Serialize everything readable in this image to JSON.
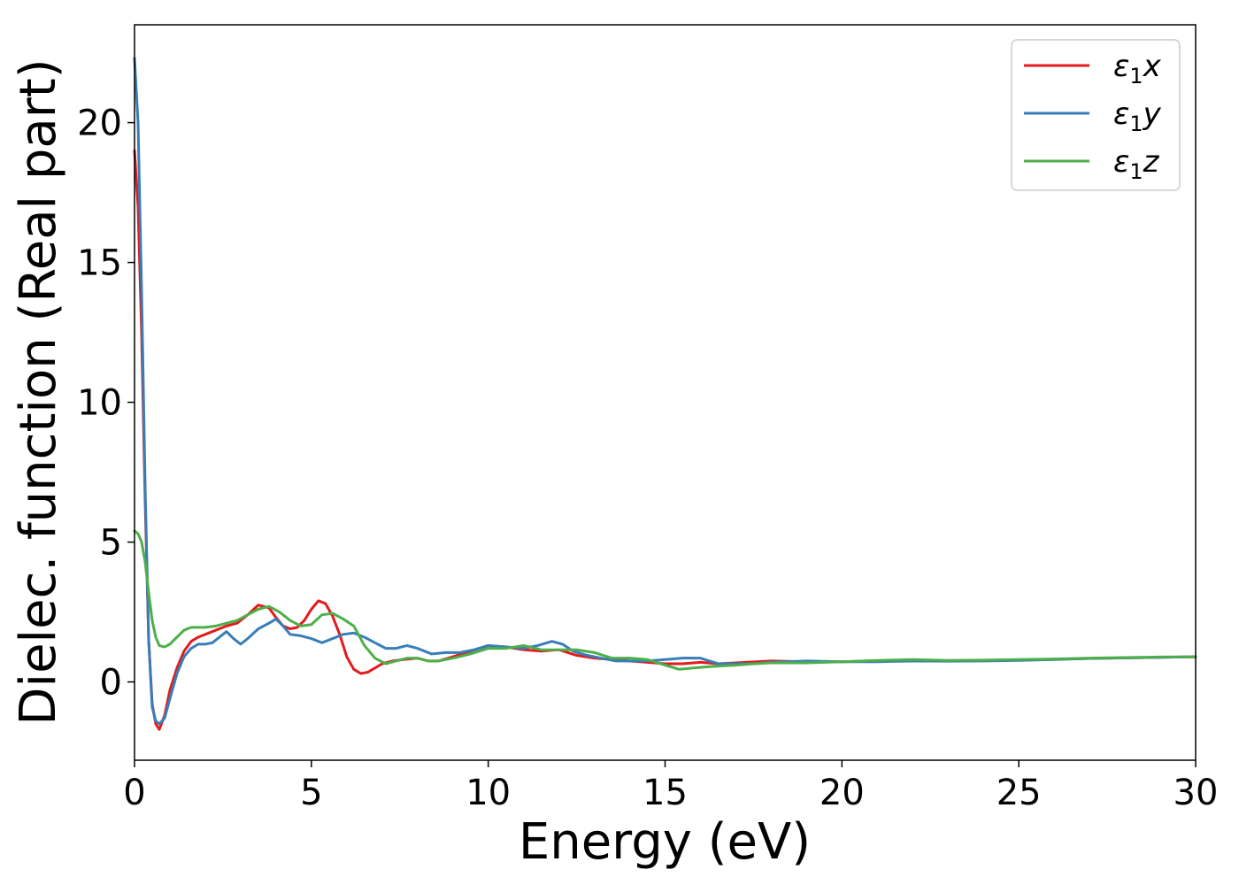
{
  "chart_data": {
    "type": "line",
    "xlabel": "Energy (eV)",
    "ylabel": "Dielec. function (Real part)",
    "xlim": [
      0,
      30
    ],
    "ylim": [
      -2.8,
      23.5
    ],
    "xticks": [
      0,
      5,
      10,
      15,
      20,
      25,
      30
    ],
    "yticks": [
      0,
      5,
      10,
      15,
      20
    ],
    "grid": false,
    "legend_position": "top-right",
    "series": [
      {
        "name": "ε1x",
        "legend_main": "ε",
        "legend_sub": "1",
        "legend_var": "x",
        "color": "#e41a1c",
        "points": [
          [
            0,
            19.0
          ],
          [
            0.1,
            17.0
          ],
          [
            0.2,
            12.5
          ],
          [
            0.3,
            6.5
          ],
          [
            0.4,
            1.5
          ],
          [
            0.5,
            -0.8
          ],
          [
            0.6,
            -1.5
          ],
          [
            0.7,
            -1.7
          ],
          [
            0.85,
            -1.2
          ],
          [
            1.0,
            -0.3
          ],
          [
            1.2,
            0.5
          ],
          [
            1.4,
            1.1
          ],
          [
            1.6,
            1.45
          ],
          [
            1.8,
            1.6
          ],
          [
            2.0,
            1.7
          ],
          [
            2.3,
            1.85
          ],
          [
            2.6,
            2.0
          ],
          [
            2.9,
            2.1
          ],
          [
            3.2,
            2.4
          ],
          [
            3.5,
            2.75
          ],
          [
            3.8,
            2.65
          ],
          [
            4.0,
            2.3
          ],
          [
            4.2,
            2.0
          ],
          [
            4.4,
            1.9
          ],
          [
            4.6,
            1.95
          ],
          [
            4.8,
            2.2
          ],
          [
            5.0,
            2.6
          ],
          [
            5.2,
            2.9
          ],
          [
            5.4,
            2.8
          ],
          [
            5.6,
            2.35
          ],
          [
            5.8,
            1.7
          ],
          [
            6.0,
            0.9
          ],
          [
            6.2,
            0.45
          ],
          [
            6.4,
            0.3
          ],
          [
            6.6,
            0.35
          ],
          [
            6.8,
            0.5
          ],
          [
            7.0,
            0.65
          ],
          [
            7.3,
            0.75
          ],
          [
            7.6,
            0.8
          ],
          [
            8.0,
            0.85
          ],
          [
            8.3,
            0.75
          ],
          [
            8.6,
            0.75
          ],
          [
            9.0,
            0.9
          ],
          [
            9.5,
            1.1
          ],
          [
            10.0,
            1.3
          ],
          [
            10.5,
            1.25
          ],
          [
            11.0,
            1.15
          ],
          [
            11.5,
            1.1
          ],
          [
            12.0,
            1.15
          ],
          [
            12.5,
            0.95
          ],
          [
            13.0,
            0.85
          ],
          [
            13.5,
            0.8
          ],
          [
            14.0,
            0.75
          ],
          [
            14.5,
            0.7
          ],
          [
            15.0,
            0.65
          ],
          [
            15.5,
            0.65
          ],
          [
            16.0,
            0.7
          ],
          [
            16.5,
            0.65
          ],
          [
            17.0,
            0.68
          ],
          [
            18.0,
            0.75
          ],
          [
            19.0,
            0.72
          ],
          [
            20.0,
            0.72
          ],
          [
            21.0,
            0.75
          ],
          [
            22.0,
            0.78
          ],
          [
            23.0,
            0.76
          ],
          [
            24.0,
            0.76
          ],
          [
            25.0,
            0.78
          ],
          [
            26.0,
            0.81
          ],
          [
            27.0,
            0.84
          ],
          [
            28.0,
            0.86
          ],
          [
            29.0,
            0.88
          ],
          [
            30.0,
            0.9
          ]
        ]
      },
      {
        "name": "ε1y",
        "legend_main": "ε",
        "legend_sub": "1",
        "legend_var": "y",
        "color": "#377eb8",
        "points": [
          [
            0,
            22.3
          ],
          [
            0.1,
            20.0
          ],
          [
            0.2,
            14.0
          ],
          [
            0.3,
            7.0
          ],
          [
            0.4,
            1.5
          ],
          [
            0.5,
            -0.9
          ],
          [
            0.6,
            -1.4
          ],
          [
            0.7,
            -1.5
          ],
          [
            0.85,
            -1.3
          ],
          [
            1.0,
            -0.6
          ],
          [
            1.2,
            0.3
          ],
          [
            1.4,
            0.9
          ],
          [
            1.6,
            1.2
          ],
          [
            1.8,
            1.35
          ],
          [
            2.0,
            1.35
          ],
          [
            2.2,
            1.4
          ],
          [
            2.4,
            1.6
          ],
          [
            2.6,
            1.8
          ],
          [
            2.8,
            1.55
          ],
          [
            3.0,
            1.35
          ],
          [
            3.2,
            1.55
          ],
          [
            3.5,
            1.9
          ],
          [
            3.8,
            2.1
          ],
          [
            4.0,
            2.25
          ],
          [
            4.2,
            2.0
          ],
          [
            4.4,
            1.7
          ],
          [
            4.7,
            1.65
          ],
          [
            5.0,
            1.55
          ],
          [
            5.3,
            1.4
          ],
          [
            5.6,
            1.55
          ],
          [
            5.9,
            1.7
          ],
          [
            6.2,
            1.75
          ],
          [
            6.5,
            1.6
          ],
          [
            6.8,
            1.4
          ],
          [
            7.1,
            1.2
          ],
          [
            7.4,
            1.2
          ],
          [
            7.7,
            1.3
          ],
          [
            8.0,
            1.2
          ],
          [
            8.4,
            1.0
          ],
          [
            8.8,
            1.05
          ],
          [
            9.2,
            1.05
          ],
          [
            9.6,
            1.15
          ],
          [
            10.0,
            1.3
          ],
          [
            10.5,
            1.25
          ],
          [
            11.0,
            1.2
          ],
          [
            11.4,
            1.3
          ],
          [
            11.8,
            1.45
          ],
          [
            12.1,
            1.35
          ],
          [
            12.4,
            1.1
          ],
          [
            12.8,
            0.95
          ],
          [
            13.2,
            0.85
          ],
          [
            13.6,
            0.75
          ],
          [
            14.0,
            0.75
          ],
          [
            14.5,
            0.75
          ],
          [
            15.0,
            0.8
          ],
          [
            15.5,
            0.85
          ],
          [
            16.0,
            0.85
          ],
          [
            16.5,
            0.65
          ],
          [
            17.0,
            0.65
          ],
          [
            17.5,
            0.65
          ],
          [
            18.0,
            0.7
          ],
          [
            19.0,
            0.75
          ],
          [
            20.0,
            0.72
          ],
          [
            21.0,
            0.72
          ],
          [
            22.0,
            0.75
          ],
          [
            23.0,
            0.74
          ],
          [
            24.0,
            0.75
          ],
          [
            25.0,
            0.77
          ],
          [
            26.0,
            0.8
          ],
          [
            27.0,
            0.84
          ],
          [
            28.0,
            0.86
          ],
          [
            29.0,
            0.88
          ],
          [
            30.0,
            0.9
          ]
        ]
      },
      {
        "name": "ε1z",
        "legend_main": "ε",
        "legend_sub": "1",
        "legend_var": "z",
        "color": "#4daf4a",
        "points": [
          [
            0,
            5.4
          ],
          [
            0.1,
            5.3
          ],
          [
            0.2,
            5.0
          ],
          [
            0.3,
            4.3
          ],
          [
            0.4,
            3.2
          ],
          [
            0.5,
            2.2
          ],
          [
            0.6,
            1.6
          ],
          [
            0.7,
            1.3
          ],
          [
            0.85,
            1.25
          ],
          [
            1.0,
            1.35
          ],
          [
            1.2,
            1.6
          ],
          [
            1.4,
            1.85
          ],
          [
            1.6,
            1.95
          ],
          [
            1.8,
            1.95
          ],
          [
            2.0,
            1.95
          ],
          [
            2.3,
            2.0
          ],
          [
            2.6,
            2.1
          ],
          [
            2.9,
            2.2
          ],
          [
            3.2,
            2.4
          ],
          [
            3.5,
            2.6
          ],
          [
            3.8,
            2.7
          ],
          [
            4.1,
            2.5
          ],
          [
            4.4,
            2.2
          ],
          [
            4.7,
            2.0
          ],
          [
            5.0,
            2.05
          ],
          [
            5.3,
            2.4
          ],
          [
            5.6,
            2.45
          ],
          [
            5.9,
            2.25
          ],
          [
            6.2,
            2.0
          ],
          [
            6.5,
            1.3
          ],
          [
            6.8,
            0.85
          ],
          [
            7.1,
            0.65
          ],
          [
            7.4,
            0.75
          ],
          [
            7.7,
            0.85
          ],
          [
            8.0,
            0.85
          ],
          [
            8.3,
            0.75
          ],
          [
            8.6,
            0.75
          ],
          [
            9.0,
            0.85
          ],
          [
            9.5,
            1.0
          ],
          [
            10.0,
            1.2
          ],
          [
            10.5,
            1.2
          ],
          [
            11.0,
            1.3
          ],
          [
            11.5,
            1.15
          ],
          [
            12.0,
            1.15
          ],
          [
            12.5,
            1.15
          ],
          [
            13.0,
            1.05
          ],
          [
            13.5,
            0.85
          ],
          [
            14.0,
            0.85
          ],
          [
            14.5,
            0.8
          ],
          [
            15.0,
            0.6
          ],
          [
            15.4,
            0.45
          ],
          [
            15.8,
            0.5
          ],
          [
            16.3,
            0.55
          ],
          [
            17.0,
            0.6
          ],
          [
            17.5,
            0.65
          ],
          [
            18.0,
            0.68
          ],
          [
            19.0,
            0.68
          ],
          [
            20.0,
            0.72
          ],
          [
            21.0,
            0.77
          ],
          [
            22.0,
            0.8
          ],
          [
            23.0,
            0.77
          ],
          [
            24.0,
            0.78
          ],
          [
            25.0,
            0.8
          ],
          [
            26.0,
            0.82
          ],
          [
            27.0,
            0.85
          ],
          [
            28.0,
            0.87
          ],
          [
            29.0,
            0.89
          ],
          [
            30.0,
            0.9
          ]
        ]
      }
    ]
  }
}
